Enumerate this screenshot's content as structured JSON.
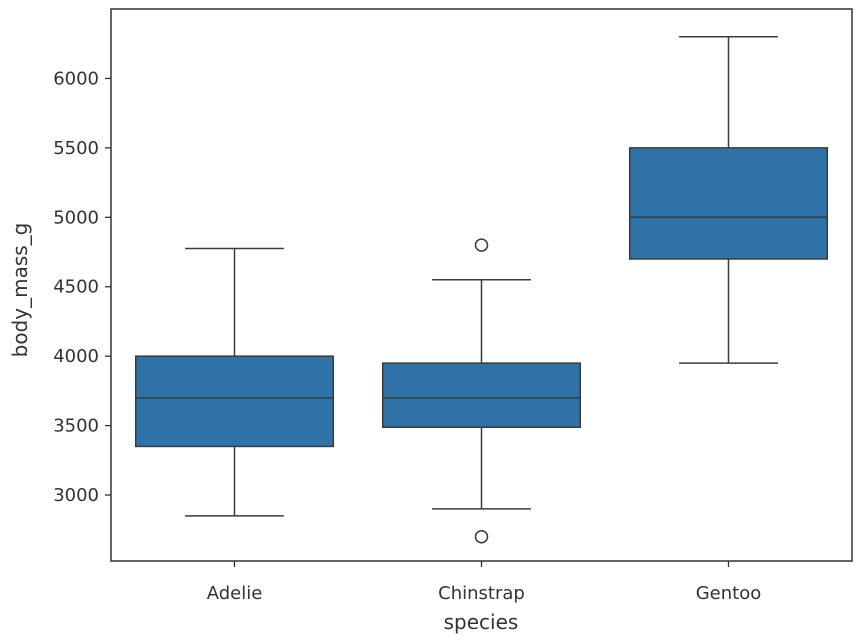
{
  "chart_data": {
    "type": "box",
    "xlabel": "species",
    "ylabel": "body_mass_g",
    "ylim": [
      2525,
      6500
    ],
    "yticks": [
      3000,
      3500,
      4000,
      4500,
      5000,
      5500,
      6000
    ],
    "ytick_labels": [
      "3000",
      "3500",
      "4000",
      "4500",
      "5000",
      "5500",
      "6000"
    ],
    "categories": [
      "Adelie",
      "Chinstrap",
      "Gentoo"
    ],
    "box_color": "#2e72a8",
    "line_color": "#3b3b3b",
    "grid": false,
    "boxes": [
      {
        "category": "Adelie",
        "whisker_low": 2850,
        "q1": 3350,
        "median": 3700,
        "q3": 4000,
        "whisker_high": 4775,
        "outliers": []
      },
      {
        "category": "Chinstrap",
        "whisker_low": 2900,
        "q1": 3488,
        "median": 3700,
        "q3": 3950,
        "whisker_high": 4550,
        "outliers": [
          2700,
          4800
        ]
      },
      {
        "category": "Gentoo",
        "whisker_low": 3950,
        "q1": 4700,
        "median": 5000,
        "q3": 5500,
        "whisker_high": 6300,
        "outliers": []
      }
    ]
  }
}
